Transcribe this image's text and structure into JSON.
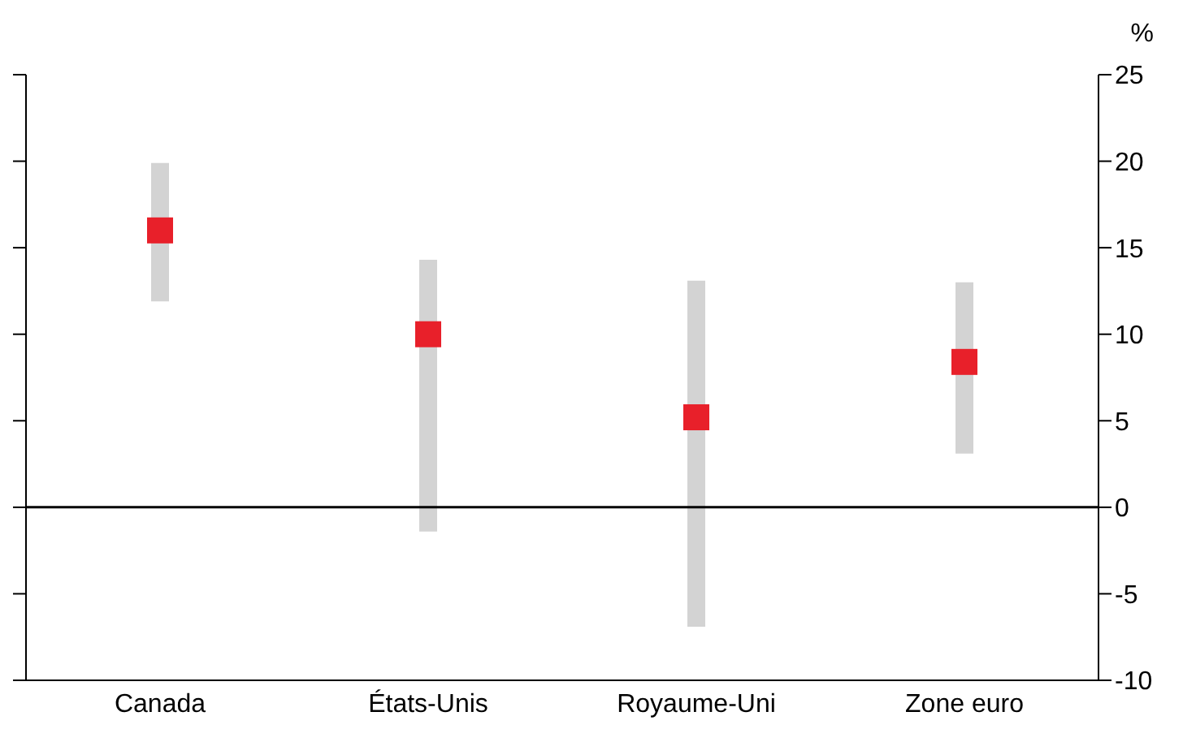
{
  "chart_data": {
    "type": "bar",
    "ylabel": "%",
    "categories": [
      "Canada",
      "États-Unis",
      "Royaume-Uni",
      "Zone euro"
    ],
    "series": [
      {
        "color": "#d3d3d3",
        "values": [
          8.0,
          15.7,
          20.0,
          9.9
        ],
        "base": [
          11.9,
          -1.4,
          -6.9,
          3.1
        ]
      },
      {
        "type": "scatter",
        "color": "#e8202a",
        "marker": "square",
        "values": [
          16.0,
          10.0,
          5.2,
          8.4
        ]
      }
    ],
    "ylim": [
      -10,
      25
    ],
    "yticks": [
      -10,
      -5,
      0,
      5,
      10,
      15,
      20,
      25
    ],
    "grid": false,
    "legend": false,
    "ref_lines": [
      {
        "axis": "y",
        "value": 0,
        "color": "#000000"
      }
    ]
  }
}
